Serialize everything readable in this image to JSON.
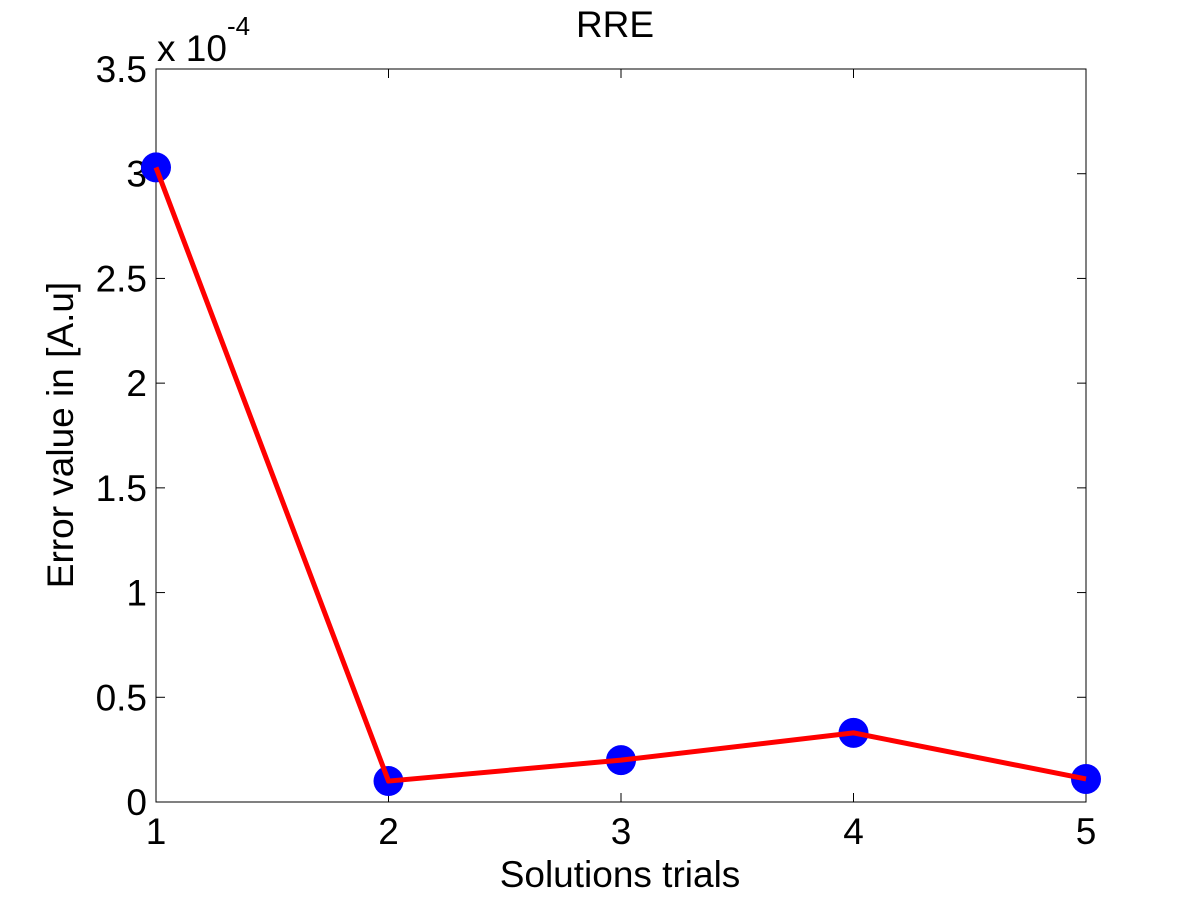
{
  "chart_data": {
    "type": "line",
    "title": "RRE",
    "xlabel": "Solutions trials",
    "ylabel": "Error value in [A.u]",
    "y_multiplier_base": "x 10",
    "y_multiplier_exponent": "-4",
    "xlim": [
      1,
      5
    ],
    "ylim": [
      0,
      3.5
    ],
    "x_ticks": [
      1,
      2,
      3,
      4,
      5
    ],
    "x_tick_labels": [
      "1",
      "2",
      "3",
      "4",
      "5"
    ],
    "y_ticks": [
      0,
      0.5,
      1,
      1.5,
      2,
      2.5,
      3,
      3.5
    ],
    "y_tick_labels": [
      "0",
      "0.5",
      "1",
      "1.5",
      "2",
      "2.5",
      "3",
      "3.5"
    ],
    "grid": false,
    "series": [
      {
        "x": [
          1,
          2,
          3,
          4,
          5
        ],
        "values": [
          3.03,
          0.1,
          0.2,
          0.33,
          0.11
        ],
        "line_color": "#ff0000",
        "marker_color": "#0000ff"
      }
    ]
  }
}
